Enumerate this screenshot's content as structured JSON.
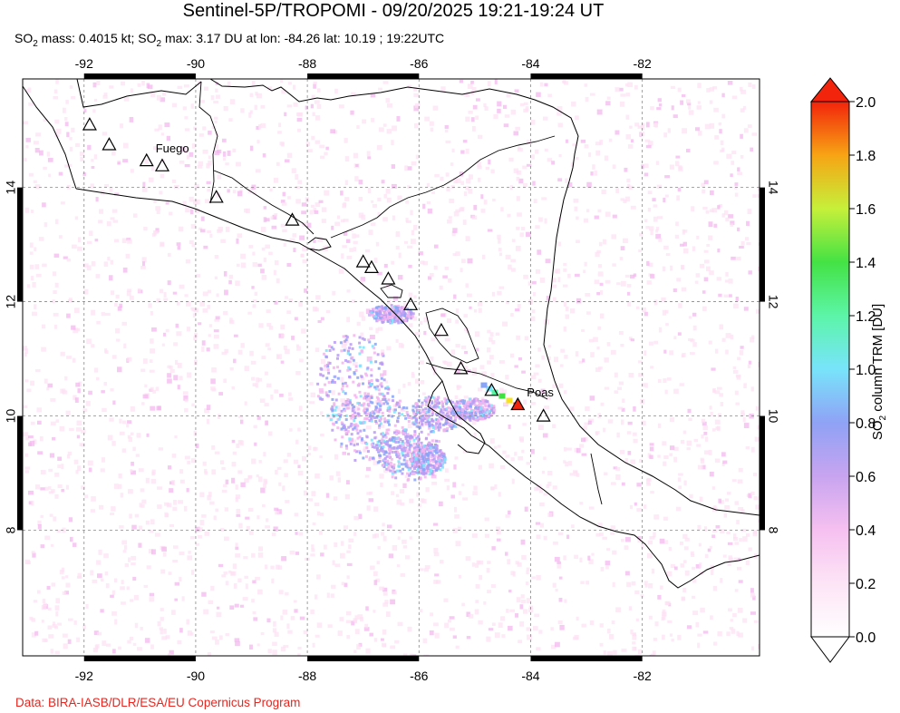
{
  "title": "Sentinel-5P/TROPOMI - 09/20/2025 19:21-19:24 UT",
  "subtitle": {
    "mass_prefix": "SO",
    "mass_sub": "2",
    "mass_text": " mass: 0.4015 kt; SO",
    "max_sub": "2",
    "max_text": " max: 3.17 DU at lon: -84.26 lat: 10.19 ; 19:22UTC"
  },
  "credit": "Data: BIRA-IASB/DLR/ESA/EU Copernicus Program",
  "map": {
    "lon_range": [
      -93.1,
      -79.9
    ],
    "lat_range": [
      5.8,
      15.9
    ],
    "lon_ticks": [
      -92,
      -90,
      -88,
      -86,
      -84,
      -82
    ],
    "lat_ticks": [
      8,
      10,
      12,
      14
    ],
    "lon_tick_labels": [
      "-92",
      "-90",
      "-88",
      "-86",
      "-84",
      "-82"
    ],
    "lat_tick_labels": [
      "8",
      "10",
      "12",
      "14"
    ],
    "grid": "dashed"
  },
  "volcanoes": [
    {
      "name": "Fuego",
      "lon": -90.88,
      "lat": 14.47,
      "labeled": true
    },
    {
      "name": "Poas",
      "lon": -84.23,
      "lat": 10.2,
      "labeled": true
    },
    {
      "name": "",
      "lon": -91.9,
      "lat": 15.1,
      "labeled": false
    },
    {
      "name": "",
      "lon": -91.55,
      "lat": 14.75,
      "labeled": false
    },
    {
      "name": "",
      "lon": -90.6,
      "lat": 14.38,
      "labeled": false
    },
    {
      "name": "",
      "lon": -89.63,
      "lat": 13.83,
      "labeled": false
    },
    {
      "name": "",
      "lon": -88.27,
      "lat": 13.43,
      "labeled": false
    },
    {
      "name": "",
      "lon": -87.0,
      "lat": 12.7,
      "labeled": false
    },
    {
      "name": "",
      "lon": -86.85,
      "lat": 12.6,
      "labeled": false
    },
    {
      "name": "",
      "lon": -86.55,
      "lat": 12.4,
      "labeled": false
    },
    {
      "name": "",
      "lon": -86.15,
      "lat": 11.95,
      "labeled": false
    },
    {
      "name": "",
      "lon": -85.6,
      "lat": 11.5,
      "labeled": false
    },
    {
      "name": "",
      "lon": -85.25,
      "lat": 10.83,
      "labeled": false
    },
    {
      "name": "",
      "lon": -84.7,
      "lat": 10.45,
      "labeled": false
    },
    {
      "name": "",
      "lon": -83.77,
      "lat": 10.0,
      "labeled": false
    }
  ],
  "so2_max": {
    "value": 3.17,
    "unit": "DU",
    "lon": -84.26,
    "lat": 10.19
  },
  "colorbar": {
    "label_prefix": "SO",
    "label_sub": "2",
    "label_text": " column TRM [DU]",
    "min": 0.0,
    "max": 2.0,
    "ticks": [
      "0.0",
      "0.2",
      "0.4",
      "0.6",
      "0.8",
      "1.0",
      "1.2",
      "1.4",
      "1.6",
      "1.8",
      "2.0"
    ],
    "colors": [
      "#ffffff",
      "#fde0f4",
      "#f3b4ee",
      "#b89cf2",
      "#8aa4f6",
      "#79e6fb",
      "#53f4a0",
      "#40e040",
      "#bff23a",
      "#f7e21c",
      "#f89a10",
      "#f2240b"
    ],
    "extend": "both"
  }
}
